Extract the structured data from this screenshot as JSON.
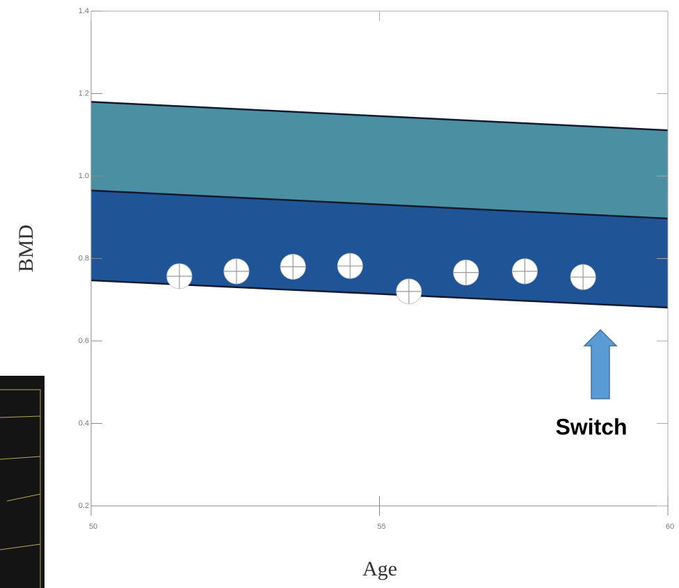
{
  "chart_data": {
    "type": "scatter",
    "x_label": "Age",
    "y_label": "BMD",
    "x": [
      51.53,
      52.52,
      53.5,
      54.49,
      55.51,
      56.5,
      57.52,
      58.53
    ],
    "values": [
      0.757,
      0.769,
      0.78,
      0.782,
      0.72,
      0.766,
      0.769,
      0.755
    ],
    "xlim": [
      50,
      60
    ],
    "ylim": [
      0.2,
      1.4
    ],
    "xticks": [
      50,
      55,
      60
    ],
    "yticks": [
      0.2,
      0.4,
      0.6,
      0.8,
      {
        "value": 1,
        "label": "1.0"
      },
      1.2,
      1.4
    ],
    "reference_lines": [
      [
        1.18,
        1.111
      ],
      [
        0.965,
        0.897
      ],
      [
        0.747,
        0.681
      ]
    ],
    "band_colors": [
      "#4b8fa2",
      "#1f5597"
    ],
    "annotation": "Switch"
  }
}
